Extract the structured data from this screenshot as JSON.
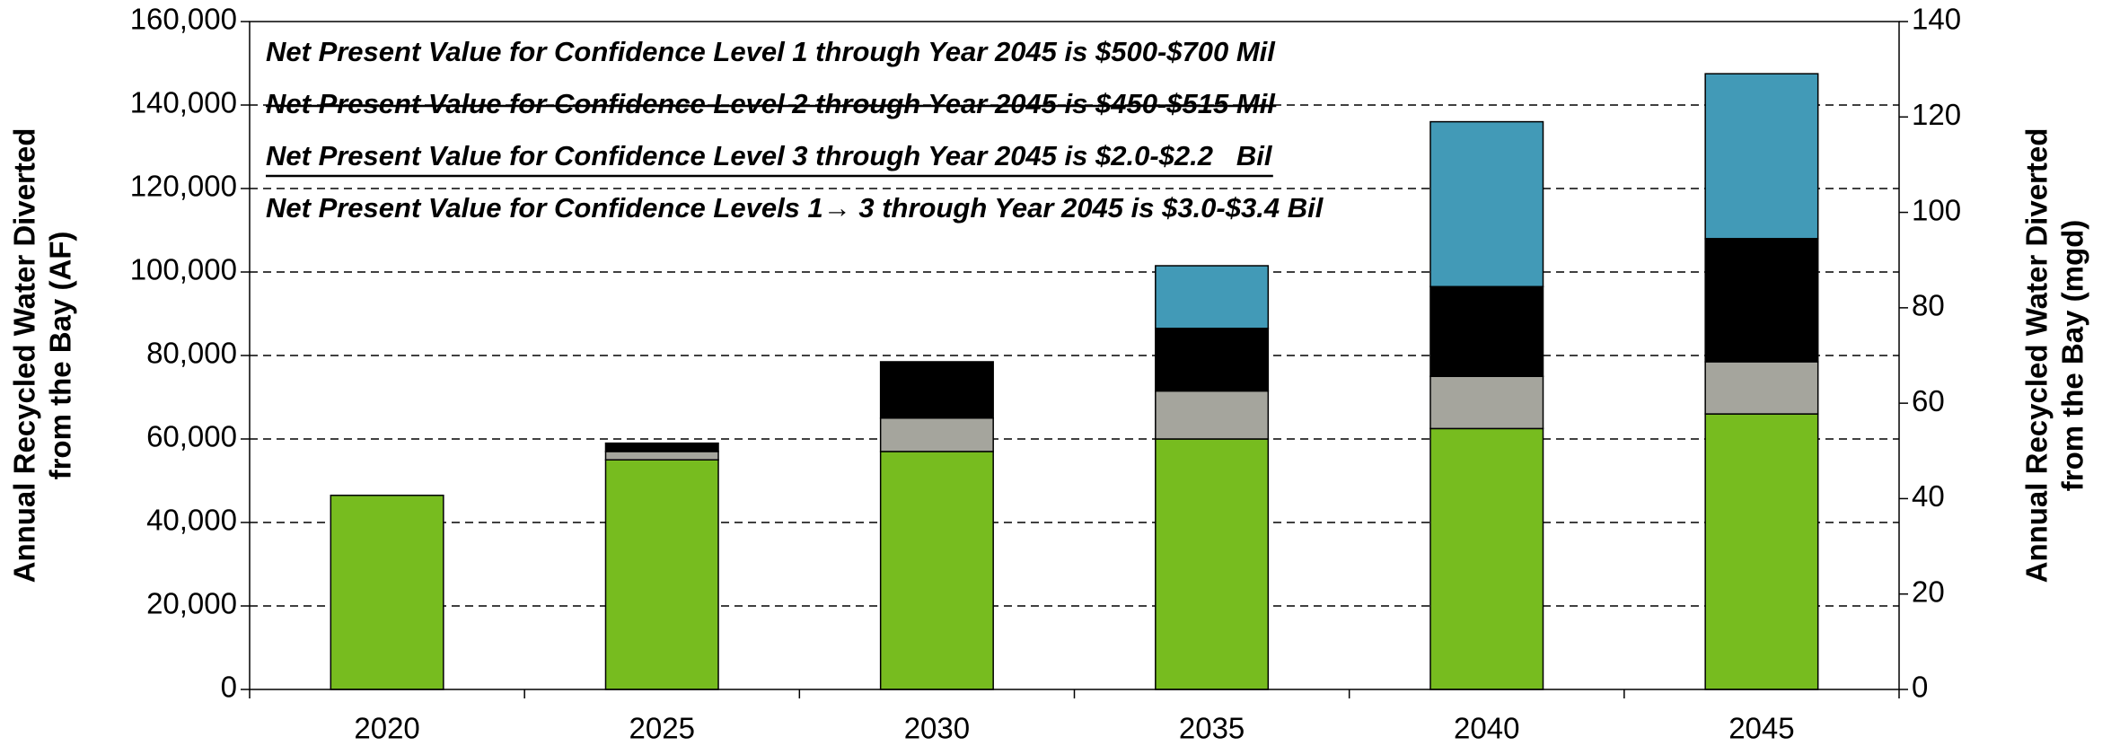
{
  "chart_data": {
    "type": "stacked_bar",
    "categories": [
      "2020",
      "2025",
      "2030",
      "2035",
      "2040",
      "2045"
    ],
    "series": [
      {
        "color": "#77bc1f",
        "values": [
          46500,
          55000,
          57000,
          60000,
          62500,
          66000
        ]
      },
      {
        "color": "#a5a59d",
        "values": [
          0,
          2000,
          8000,
          11500,
          12500,
          12500
        ]
      },
      {
        "color": "#000000",
        "values": [
          0,
          2000,
          13500,
          15000,
          21500,
          29500
        ]
      },
      {
        "color": "#429ab7",
        "values": [
          0,
          0,
          0,
          15000,
          39500,
          39500
        ]
      }
    ],
    "ylim": [
      0,
      160000
    ],
    "yticks": [
      0,
      {
        "value": 20000,
        "label": "20,000"
      },
      {
        "value": 40000,
        "label": "40,000"
      },
      {
        "value": 60000,
        "label": "60,000"
      },
      {
        "value": 80000,
        "label": "80,000"
      },
      {
        "value": 100000,
        "label": "100,000"
      },
      {
        "value": 120000,
        "label": "120,000"
      },
      {
        "value": 140000,
        "label": "140,000"
      },
      {
        "value": 160000,
        "label": "160,000"
      }
    ],
    "y2lim": [
      0,
      140
    ],
    "y2ticks": [
      0,
      20,
      40,
      60,
      80,
      100,
      120,
      140
    ],
    "ylabel": [
      "Annual Recycled Water Diverted",
      "from the Bay (AF)"
    ],
    "y2label": [
      "Annual Recycled Water Diverted",
      "from the Bay (mgd)"
    ],
    "grid": true,
    "annotations": [
      {
        "text": "Net Present Value for Confidence Level 1 through Year 2045 is $500-$700 Mil",
        "style": "normal"
      },
      {
        "text": "Net Present Value for Confidence Level 2 through Year 2045 is $450-$515 Mil",
        "style": "strikethrough"
      },
      {
        "text": "Net Present Value for Confidence Level 3 through Year 2045 is $2.0-$2.2   Bil",
        "style": "underline"
      },
      {
        "text": "Net Present Value for Confidence Levels 1→ 3 through Year 2045 is $3.0-$3.4 Bil",
        "style": "normal"
      }
    ]
  }
}
